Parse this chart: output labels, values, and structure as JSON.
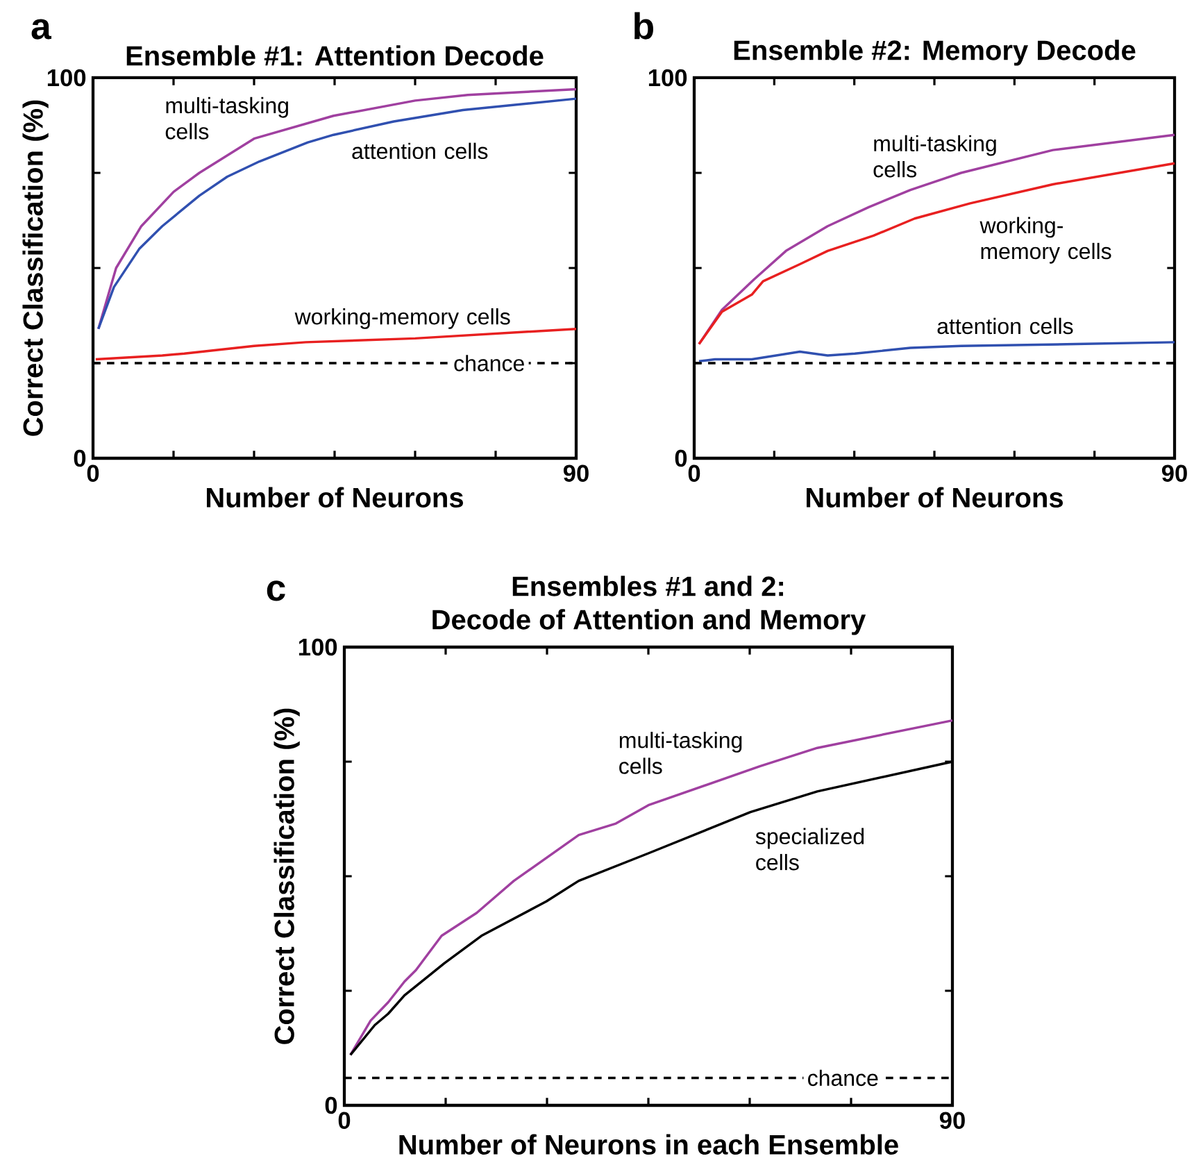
{
  "chart_data": [
    {
      "type": "line",
      "title": "Ensemble #1:  Attention Decode",
      "xlabel": "Number of Neurons",
      "ylabel": "Correct Classification (%)",
      "xlim": [
        0,
        90
      ],
      "ylim": [
        0,
        100
      ],
      "xticks": [
        0,
        {
          "value": 15,
          "label": null
        },
        {
          "value": 30,
          "label": null
        },
        {
          "value": 45,
          "label": null
        },
        {
          "value": 60,
          "label": null
        },
        {
          "value": 75,
          "label": null
        },
        90
      ],
      "yticks": [
        0,
        {
          "value": 25,
          "label": null
        },
        {
          "value": 50,
          "label": null
        },
        {
          "value": 75,
          "label": null
        },
        100
      ],
      "series": [
        {
          "color": "#a040a0",
          "x": [
            1,
            4.3,
            9,
            15,
            19.8,
            30,
            44.8,
            60,
            69.8,
            90
          ],
          "values": [
            34,
            50,
            61,
            70,
            75,
            84,
            90,
            94,
            95.5,
            97
          ]
        },
        {
          "color": "#3050b0",
          "x": [
            1,
            3.9,
            8.6,
            12.9,
            19.8,
            25,
            31,
            40,
            44.8,
            56,
            68.9,
            90
          ],
          "values": [
            34,
            45,
            55,
            61,
            69,
            74,
            78,
            83,
            85,
            88.5,
            91.5,
            94.5
          ]
        },
        {
          "color": "#e82020",
          "x": [
            0.5,
            12.9,
            17,
            30,
            39.6,
            60,
            90
          ],
          "values": [
            26,
            27,
            27.5,
            29.5,
            30.5,
            31.5,
            34
          ]
        }
      ],
      "ref_lines": [
        {
          "axis": "y",
          "value": 25,
          "label": "chance",
          "color": "#000000",
          "line_style": "dashed"
        }
      ],
      "annotations": [
        "a",
        "multi-tasking cells",
        "attention cells",
        "working-memory cells"
      ]
    },
    {
      "type": "line",
      "title": "Ensemble #2:  Memory Decode",
      "xlabel": "Number of Neurons",
      "xlim": [
        0,
        90
      ],
      "ylim": [
        0,
        100
      ],
      "xticks": [
        0,
        {
          "value": 15,
          "label": null
        },
        {
          "value": 30,
          "label": null
        },
        {
          "value": 45,
          "label": null
        },
        {
          "value": 60,
          "label": null
        },
        {
          "value": 75,
          "label": null
        },
        90
      ],
      "yticks": [
        0,
        {
          "value": 25,
          "label": null
        },
        {
          "value": 50,
          "label": null
        },
        {
          "value": 75,
          "label": null
        },
        100
      ],
      "series": [
        {
          "color": "#a040a0",
          "x": [
            0.9,
            5.2,
            11.2,
            17.2,
            25,
            32.7,
            40.5,
            50,
            67.2,
            90
          ],
          "values": [
            30,
            39,
            47,
            54.5,
            61,
            66,
            70.5,
            75,
            81,
            85
          ]
        },
        {
          "color": "#e82020",
          "x": [
            0.9,
            5.2,
            10.8,
            12.9,
            19.8,
            25,
            33.6,
            41.3,
            51.7,
            67.2,
            90
          ],
          "values": [
            30,
            38.5,
            43,
            46.5,
            51,
            54.5,
            58.5,
            63,
            67,
            72,
            77.5
          ]
        },
        {
          "color": "#3050b0",
          "x": [
            0.9,
            3.9,
            10.8,
            19.8,
            25,
            30.1,
            40.5,
            50,
            71.5,
            90
          ],
          "values": [
            25.5,
            26,
            26,
            28,
            27,
            27.5,
            29,
            29.5,
            30,
            30.5
          ]
        }
      ],
      "ref_lines": [
        {
          "axis": "y",
          "value": 25,
          "color": "#000000",
          "line_style": "dashed"
        }
      ],
      "annotations": [
        "b",
        "multi-tasking cells",
        "working-memory cells",
        "attention cells"
      ]
    },
    {
      "type": "line",
      "title": "Ensembles #1 and 2:",
      "subtitle": "Decode of Attention and Memory",
      "xlabel": "Number of Neurons in each Ensemble",
      "ylabel": "Correct Classification (%)",
      "xlim": [
        0,
        90
      ],
      "ylim": [
        0,
        100
      ],
      "xticks": [
        0,
        {
          "value": 15,
          "label": null
        },
        {
          "value": 30,
          "label": null
        },
        {
          "value": 45,
          "label": null
        },
        {
          "value": 60,
          "label": null
        },
        {
          "value": 75,
          "label": null
        },
        90
      ],
      "yticks": [
        0,
        {
          "value": 25,
          "label": null
        },
        {
          "value": 50,
          "label": null
        },
        {
          "value": 75,
          "label": null
        },
        100
      ],
      "series": [
        {
          "color": "#a040a0",
          "x": [
            0.9,
            3.9,
            6.5,
            8.9,
            10.6,
            14.4,
            19.6,
            25.1,
            34.7,
            40.2,
            45,
            61.5,
            70,
            90
          ],
          "values": [
            11,
            18.5,
            22.5,
            27,
            29.5,
            37,
            42,
            49,
            59,
            61.5,
            65.5,
            74,
            78,
            84
          ]
        },
        {
          "color": "#000000",
          "x": [
            0.9,
            4.5,
            6.5,
            8.9,
            12.7,
            14.8,
            20.3,
            29.9,
            34.7,
            45,
            60.1,
            70,
            90
          ],
          "values": [
            11,
            17.5,
            20,
            24,
            28.5,
            31,
            37,
            44.5,
            49,
            55,
            64,
            68.5,
            75
          ]
        }
      ],
      "ref_lines": [
        {
          "axis": "y",
          "value": 6,
          "label": "chance",
          "color": "#000000",
          "line_style": "dashed"
        }
      ],
      "annotations": [
        "c",
        "multi-tasking cells",
        "specialized cells"
      ]
    }
  ]
}
